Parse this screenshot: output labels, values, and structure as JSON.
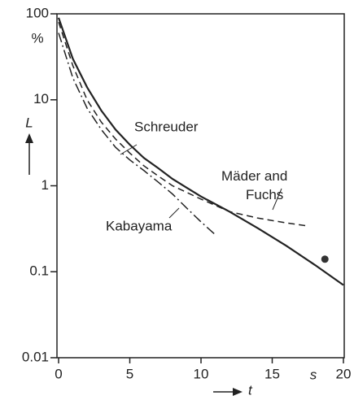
{
  "chart_data": {
    "type": "line",
    "ylabel": "L",
    "yunit": "%",
    "xlabel": "t",
    "xunit": "s",
    "ylog": true,
    "xlim": [
      0,
      20
    ],
    "xticks": [
      0,
      5,
      10,
      15,
      20
    ],
    "ylim": [
      0.01,
      100
    ],
    "yticks": [
      0.01,
      0.1,
      1,
      10,
      100
    ],
    "series": [
      {
        "name": "Schreuder",
        "color": "#222",
        "dash": "solid",
        "x": [
          0,
          1,
          2,
          3,
          4,
          5,
          6,
          7,
          8,
          9,
          10,
          12,
          14,
          16,
          18,
          20
        ],
        "values": [
          90,
          30,
          14,
          7.5,
          4.5,
          3,
          2.1,
          1.6,
          1.2,
          0.95,
          0.75,
          0.5,
          0.32,
          0.2,
          0.12,
          0.07
        ]
      },
      {
        "name": "Mäder and Fuchs",
        "color": "#222",
        "dash": "dashed",
        "x": [
          0,
          1,
          2,
          3,
          4,
          5,
          6,
          7,
          8,
          10,
          12,
          14,
          16,
          17.5
        ],
        "values": [
          80,
          25,
          10,
          5.5,
          3.5,
          2.4,
          1.7,
          1.3,
          1.0,
          0.7,
          0.5,
          0.42,
          0.37,
          0.34
        ]
      },
      {
        "name": "Kabayama",
        "color": "#222",
        "dash": "dashdot",
        "x": [
          0,
          1,
          2,
          3,
          4,
          5,
          6,
          7,
          8,
          9,
          10,
          11
        ],
        "values": [
          60,
          18,
          8,
          4.5,
          2.8,
          2,
          1.5,
          1.1,
          0.8,
          0.55,
          0.38,
          0.27
        ]
      }
    ],
    "points": [
      {
        "x": 18.7,
        "value": 0.14,
        "color": "#333"
      }
    ]
  }
}
